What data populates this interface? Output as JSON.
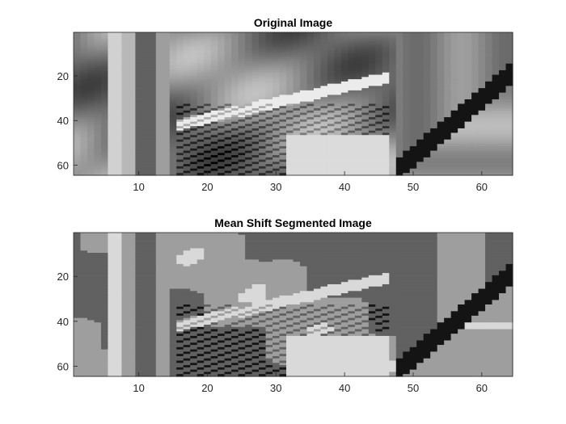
{
  "chart_data": [
    {
      "type": "heatmap",
      "title": "Original Image",
      "colormap": "gray",
      "image_size": [
        64,
        64
      ],
      "x_ticks": [
        10,
        20,
        30,
        40,
        50,
        60
      ],
      "y_ticks": [
        20,
        40,
        60
      ],
      "xlim": [
        0.5,
        64.5
      ],
      "ylim": [
        0.5,
        64.5
      ],
      "y_direction": "reverse",
      "grid": false
    },
    {
      "type": "heatmap",
      "title": "Mean Shift Segmented Image",
      "colormap": "gray",
      "levels": 4,
      "image_size": [
        64,
        64
      ],
      "x_ticks": [
        10,
        20,
        30,
        40,
        50,
        60
      ],
      "y_ticks": [
        20,
        40,
        60
      ],
      "xlim": [
        0.5,
        64.5
      ],
      "ylim": [
        0.5,
        64.5
      ],
      "y_direction": "reverse",
      "grid": false
    }
  ]
}
